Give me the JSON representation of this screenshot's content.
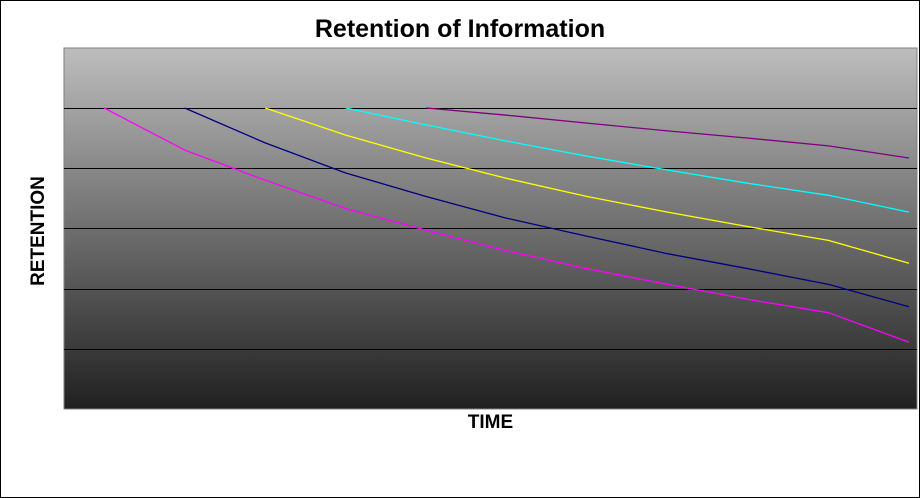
{
  "chart_data": {
    "type": "line",
    "title": "Retention of Information",
    "xlabel": "TIME",
    "ylabel": "RETENTION",
    "xlim": [
      0,
      10.6
    ],
    "ylim": [
      0,
      5
    ],
    "grid": true,
    "legend": "none",
    "colors": {
      "plot_bg_top": "#bdbdbd",
      "plot_bg_bottom": "#202020",
      "grid": "#000000",
      "border": "#808080"
    },
    "series": [
      {
        "color": "#ff00ff",
        "x": [
          0.5,
          1.5,
          2.5,
          3.5,
          4.5,
          5.5,
          6.5,
          7.5,
          8.5,
          9.5,
          10.5
        ],
        "y": [
          5.0,
          4.3,
          3.8,
          3.33,
          2.97,
          2.63,
          2.33,
          2.07,
          1.82,
          1.6,
          1.11
        ]
      },
      {
        "color": "#000080",
        "x": [
          1.5,
          2.5,
          3.5,
          4.5,
          5.5,
          6.5,
          7.5,
          8.5,
          9.5,
          10.5
        ],
        "y": [
          5.0,
          4.42,
          3.92,
          3.53,
          3.17,
          2.87,
          2.58,
          2.33,
          2.07,
          1.7
        ]
      },
      {
        "color": "#ffff00",
        "x": [
          2.5,
          3.5,
          4.5,
          5.5,
          6.5,
          7.5,
          8.5,
          9.5,
          10.5
        ],
        "y": [
          5.0,
          4.55,
          4.17,
          3.83,
          3.53,
          3.27,
          3.03,
          2.8,
          2.42
        ]
      },
      {
        "color": "#00ffff",
        "x": [
          3.5,
          4.5,
          5.5,
          6.5,
          7.5,
          8.5,
          9.5,
          10.5
        ],
        "y": [
          5.0,
          4.72,
          4.45,
          4.2,
          3.97,
          3.75,
          3.55,
          3.27
        ]
      },
      {
        "color": "#800080",
        "x": [
          4.5,
          5.5,
          6.5,
          7.5,
          8.5,
          9.5,
          10.5
        ],
        "y": [
          5.0,
          4.88,
          4.75,
          4.62,
          4.5,
          4.37,
          4.17
        ]
      }
    ]
  }
}
